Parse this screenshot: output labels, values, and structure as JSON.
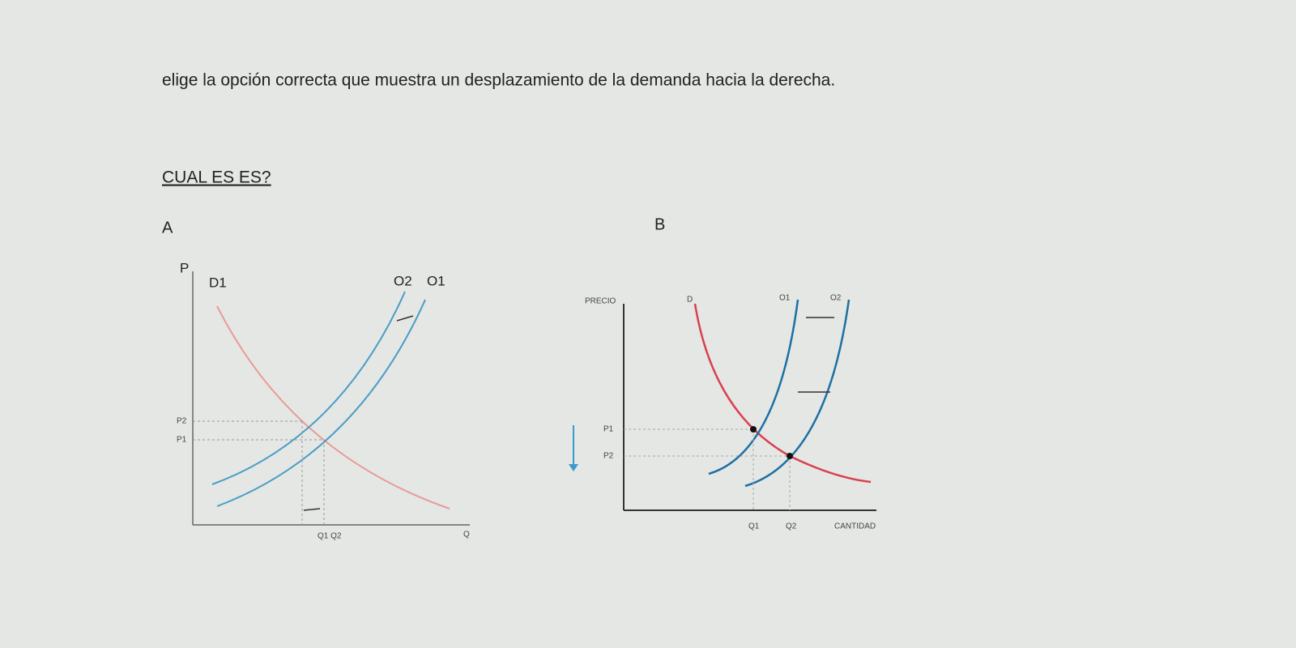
{
  "question": "elige la opción correcta que muestra un desplazamiento de la demanda hacia la derecha.",
  "subtitle": "CUAL ES ES?",
  "option_a": {
    "label": "A",
    "y_axis": "P",
    "x_axis": "Q",
    "demand": "D1",
    "supply_2": "O2",
    "supply_1": "O1",
    "price_2": "P2",
    "price_1": "P1",
    "quantities": "Q1 Q2"
  },
  "option_b": {
    "label": "B",
    "y_axis": "PRECIO",
    "x_axis": "CANTIDAD",
    "demand": "D",
    "supply_1": "O1",
    "supply_2": "O2",
    "price_1": "P1",
    "price_2": "P2",
    "quantity_1": "Q1",
    "quantity_2": "Q2"
  }
}
